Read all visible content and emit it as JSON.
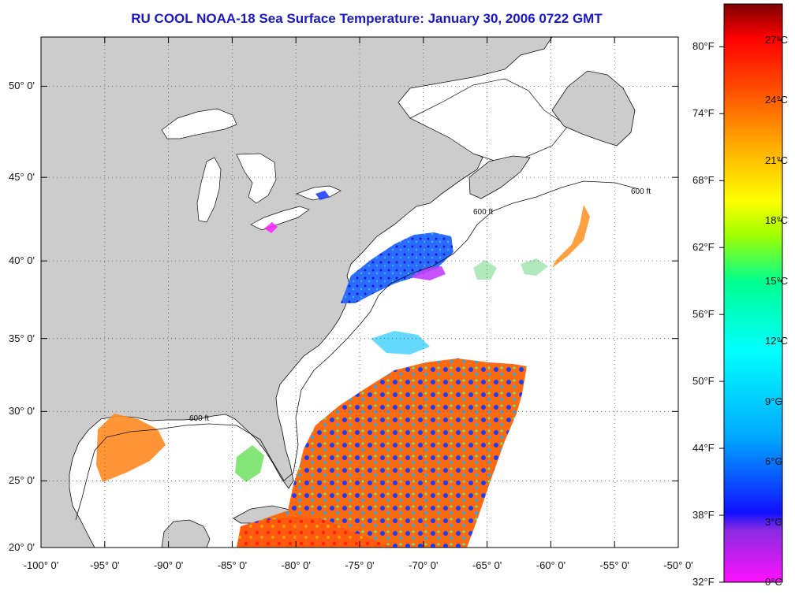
{
  "title": "RU COOL  NOAA-18  Sea Surface Temperature:  January 30, 2006 0722 GMT",
  "map": {
    "lon_range": [
      -100,
      -50
    ],
    "lat_range": [
      20,
      52.5
    ],
    "lat_labels": [
      "20° 0'",
      "25° 0'",
      "30° 0'",
      "35° 0'",
      "40° 0'",
      "45° 0'",
      "50° 0'"
    ],
    "lon_labels": [
      "-100° 0'",
      "-95° 0'",
      "-90° 0'",
      "-85° 0'",
      "-80° 0'",
      "-75° 0'",
      "-70° 0'",
      "-65° 0'",
      "-60° 0'",
      "-55° 0'",
      "-50° 0'"
    ],
    "isobath_label": "600 ft",
    "land_color": "#cccccc",
    "water_color": "#ffffff"
  },
  "colorbar": {
    "fahrenheit_labels": [
      "32°F",
      "38°F",
      "44°F",
      "50°F",
      "56°F",
      "62°F",
      "68°F",
      "74°F",
      "80°F"
    ],
    "celsius_labels": [
      "0°C",
      "3°C",
      "6°C",
      "9°C",
      "12°C",
      "15°C",
      "18°C",
      "21°C",
      "24°C",
      "27°C"
    ],
    "colors": [
      "#ff10ff",
      "#8a2be2",
      "#1010ff",
      "#00a8ff",
      "#00ffff",
      "#00ff90",
      "#a0ff00",
      "#ffff00",
      "#ffb000",
      "#ff5000",
      "#ff0000",
      "#800000"
    ]
  }
}
